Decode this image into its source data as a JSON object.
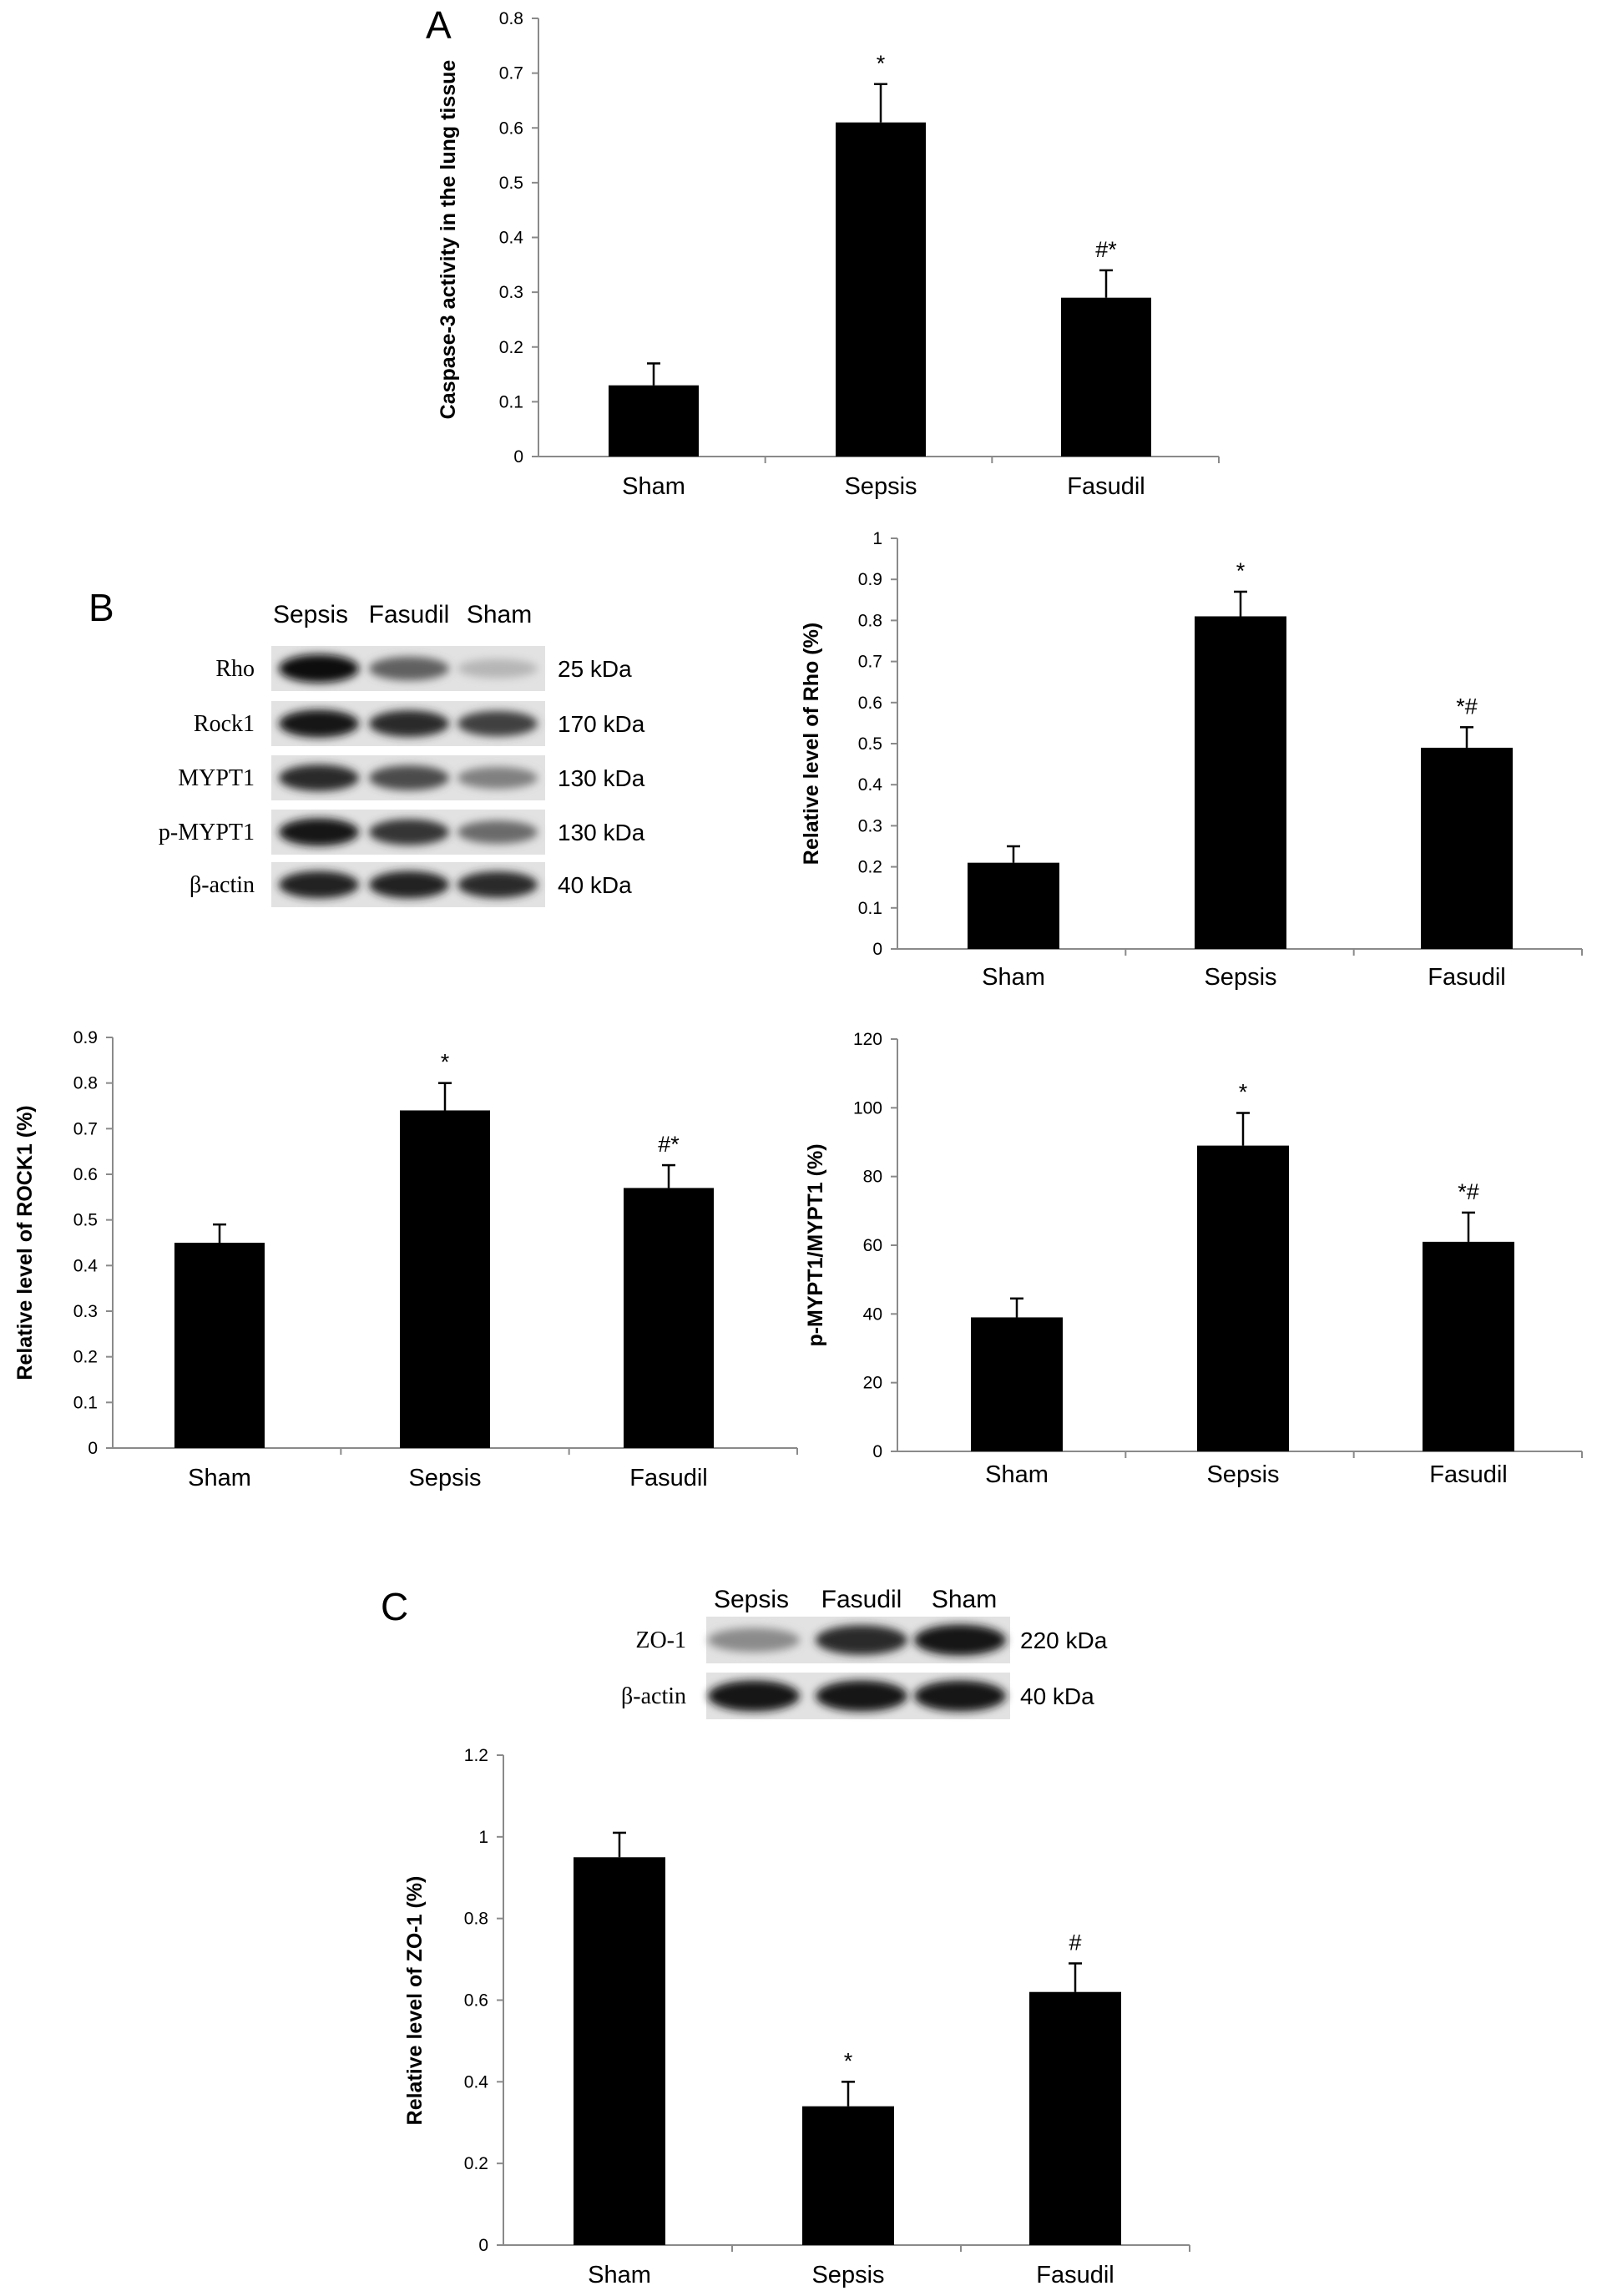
{
  "panels": {
    "A": "A",
    "B": "B",
    "C": "C"
  },
  "blot_B": {
    "lanes": [
      "Sepsis",
      "Fasudil",
      "Sham"
    ],
    "rows": [
      {
        "protein": "Rho",
        "kda": "25 kDa",
        "intensity": [
          1.0,
          0.6,
          0.2
        ]
      },
      {
        "protein": "Rock1",
        "kda": "170 kDa",
        "intensity": [
          0.95,
          0.85,
          0.75
        ]
      },
      {
        "protein": "MYPT1",
        "kda": "130 kDa",
        "intensity": [
          0.85,
          0.7,
          0.45
        ]
      },
      {
        "protein": "p-MYPT1",
        "kda": "130 kDa",
        "intensity": [
          0.95,
          0.8,
          0.55
        ]
      },
      {
        "protein": "β-actin",
        "kda": "40 kDa",
        "intensity": [
          0.9,
          0.9,
          0.85
        ]
      }
    ]
  },
  "blot_C": {
    "lanes": [
      "Sepsis",
      "Fasudil",
      "Sham"
    ],
    "rows": [
      {
        "protein": "ZO-1",
        "kda": "220 kDa",
        "intensity": [
          0.4,
          0.85,
          0.95
        ]
      },
      {
        "protein": "β-actin",
        "kda": "40 kDa",
        "intensity": [
          0.95,
          0.95,
          0.95
        ]
      }
    ]
  },
  "chart_data": [
    {
      "type": "bar",
      "panel": "A",
      "categories": [
        "Sham",
        "Sepsis",
        "Fasudil"
      ],
      "values": [
        0.13,
        0.61,
        0.29
      ],
      "errors": [
        0.04,
        0.07,
        0.05
      ],
      "annotations": [
        "",
        "*",
        "#*"
      ],
      "ylabel": "Caspase-3 activity in the lung tissue",
      "ylim": [
        0,
        0.8
      ],
      "yticks": [
        "0",
        "0.1",
        "0.2",
        "0.3",
        "0.4",
        "0.5",
        "0.6",
        "0.7",
        "0.8"
      ],
      "grid": false
    },
    {
      "type": "bar",
      "panel": "B-Rho",
      "categories": [
        "Sham",
        "Sepsis",
        "Fasudil"
      ],
      "values": [
        0.21,
        0.81,
        0.49
      ],
      "errors": [
        0.04,
        0.06,
        0.05
      ],
      "annotations": [
        "",
        "*",
        "*#"
      ],
      "ylabel": "Relative level of Rho (%)",
      "ylim": [
        0,
        1
      ],
      "yticks": [
        "0",
        "0.1",
        "0.2",
        "0.3",
        "0.4",
        "0.5",
        "0.6",
        "0.7",
        "0.8",
        "0.9",
        "1"
      ],
      "grid": false
    },
    {
      "type": "bar",
      "panel": "B-ROCK1",
      "categories": [
        "Sham",
        "Sepsis",
        "Fasudil"
      ],
      "values": [
        0.45,
        0.74,
        0.57
      ],
      "errors": [
        0.04,
        0.06,
        0.05
      ],
      "annotations": [
        "",
        "*",
        "#*"
      ],
      "ylabel": "Relative level of ROCK1 (%)",
      "ylim": [
        0,
        0.9
      ],
      "yticks": [
        "0",
        "0.1",
        "0.2",
        "0.3",
        "0.4",
        "0.5",
        "0.6",
        "0.7",
        "0.8",
        "0.9"
      ],
      "grid": false
    },
    {
      "type": "bar",
      "panel": "B-pMYPT1",
      "categories": [
        "Sham",
        "Sepsis",
        "Fasudil"
      ],
      "values": [
        39,
        89,
        61
      ],
      "errors": [
        5.5,
        9.5,
        8.5
      ],
      "annotations": [
        "",
        "*",
        "*#"
      ],
      "ylabel": "p-MYPT1/MYPT1 (%)",
      "ylim": [
        0,
        120
      ],
      "yticks": [
        "0",
        "20",
        "40",
        "60",
        "80",
        "100",
        "120"
      ],
      "grid": false
    },
    {
      "type": "bar",
      "panel": "C",
      "categories": [
        "Sham",
        "Sepsis",
        "Fasudil"
      ],
      "values": [
        0.95,
        0.34,
        0.62
      ],
      "errors": [
        0.06,
        0.06,
        0.07
      ],
      "annotations": [
        "",
        "*",
        "#"
      ],
      "ylabel": "Relative level of ZO-1 (%)",
      "ylim": [
        0,
        1.2
      ],
      "yticks": [
        "0",
        "0.2",
        "0.4",
        "0.6",
        "0.8",
        "1",
        "1.2"
      ],
      "grid": false
    }
  ]
}
